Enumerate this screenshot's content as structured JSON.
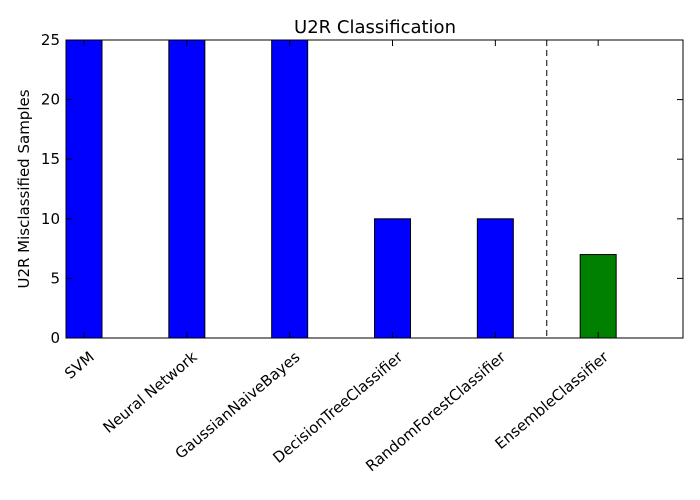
{
  "chart_data": {
    "type": "bar",
    "title": "U2R Classification",
    "xlabel": "",
    "ylabel": "U2R Misclassified Samples",
    "categories": [
      "SVM",
      "Neural Network",
      "GaussianNaiveBayes",
      "DecisionTreeClassifier",
      "RandomForestClassifier",
      "EnsembleClassifier"
    ],
    "values": [
      25,
      25,
      25,
      10,
      10,
      7
    ],
    "bar_colors": [
      "#0000ff",
      "#0000ff",
      "#0000ff",
      "#0000ff",
      "#0000ff",
      "#008000"
    ],
    "ylim": [
      0,
      25
    ],
    "yticks": [
      0,
      5,
      10,
      15,
      20,
      25
    ],
    "separator_between": [
      4,
      5
    ],
    "grid": false,
    "legend": "none"
  }
}
